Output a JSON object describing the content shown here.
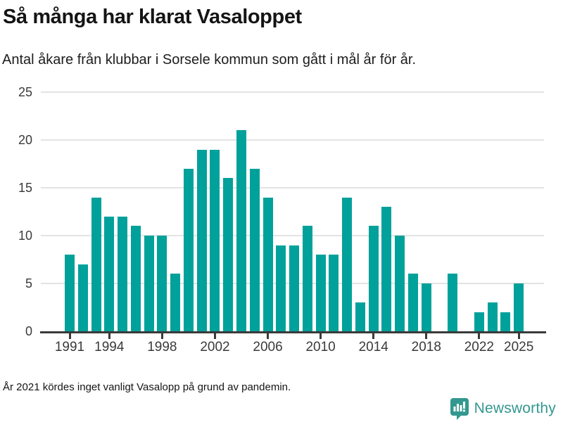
{
  "header": {
    "title": "Så många har klarat Vasaloppet",
    "subtitle": "Antal åkare från klubbar i Sorsele kommun som gått i mål år för år."
  },
  "footer": {
    "footnote": "År 2021 kördes inget vanligt Vasalopp på grund av pandemin.",
    "logo_text": "Newsworthy"
  },
  "colors": {
    "bar": "#00a19a",
    "grid": "#e3e3e3",
    "axis": "#3a3a3a",
    "logo": "#33988f"
  },
  "chart_data": {
    "type": "bar",
    "title": "Så många har klarat Vasaloppet",
    "subtitle": "Antal åkare från klubbar i Sorsele kommun som gått i mål år för år.",
    "xlabel": "",
    "ylabel": "",
    "ylim": [
      0,
      25
    ],
    "y_ticks": [
      0,
      5,
      10,
      15,
      20,
      25
    ],
    "x_tick_years": [
      1991,
      1994,
      1998,
      2002,
      2006,
      2010,
      2014,
      2018,
      2022,
      2025
    ],
    "grid": "horizontal",
    "legend": "none",
    "note": "No bar shown for 2019 and 2021; 2021 race cancelled due to the pandemic.",
    "x": [
      1991,
      1992,
      1993,
      1994,
      1995,
      1996,
      1997,
      1998,
      1999,
      2000,
      2001,
      2002,
      2003,
      2004,
      2005,
      2006,
      2007,
      2008,
      2009,
      2010,
      2011,
      2012,
      2013,
      2014,
      2015,
      2016,
      2017,
      2018,
      2019,
      2020,
      2021,
      2022,
      2023,
      2024,
      2025
    ],
    "values": [
      8,
      7,
      14,
      12,
      12,
      11,
      10,
      10,
      6,
      17,
      19,
      19,
      16,
      21,
      17,
      14,
      9,
      9,
      11,
      8,
      8,
      14,
      3,
      11,
      13,
      10,
      6,
      5,
      0,
      6,
      null,
      2,
      3,
      2,
      5
    ]
  }
}
